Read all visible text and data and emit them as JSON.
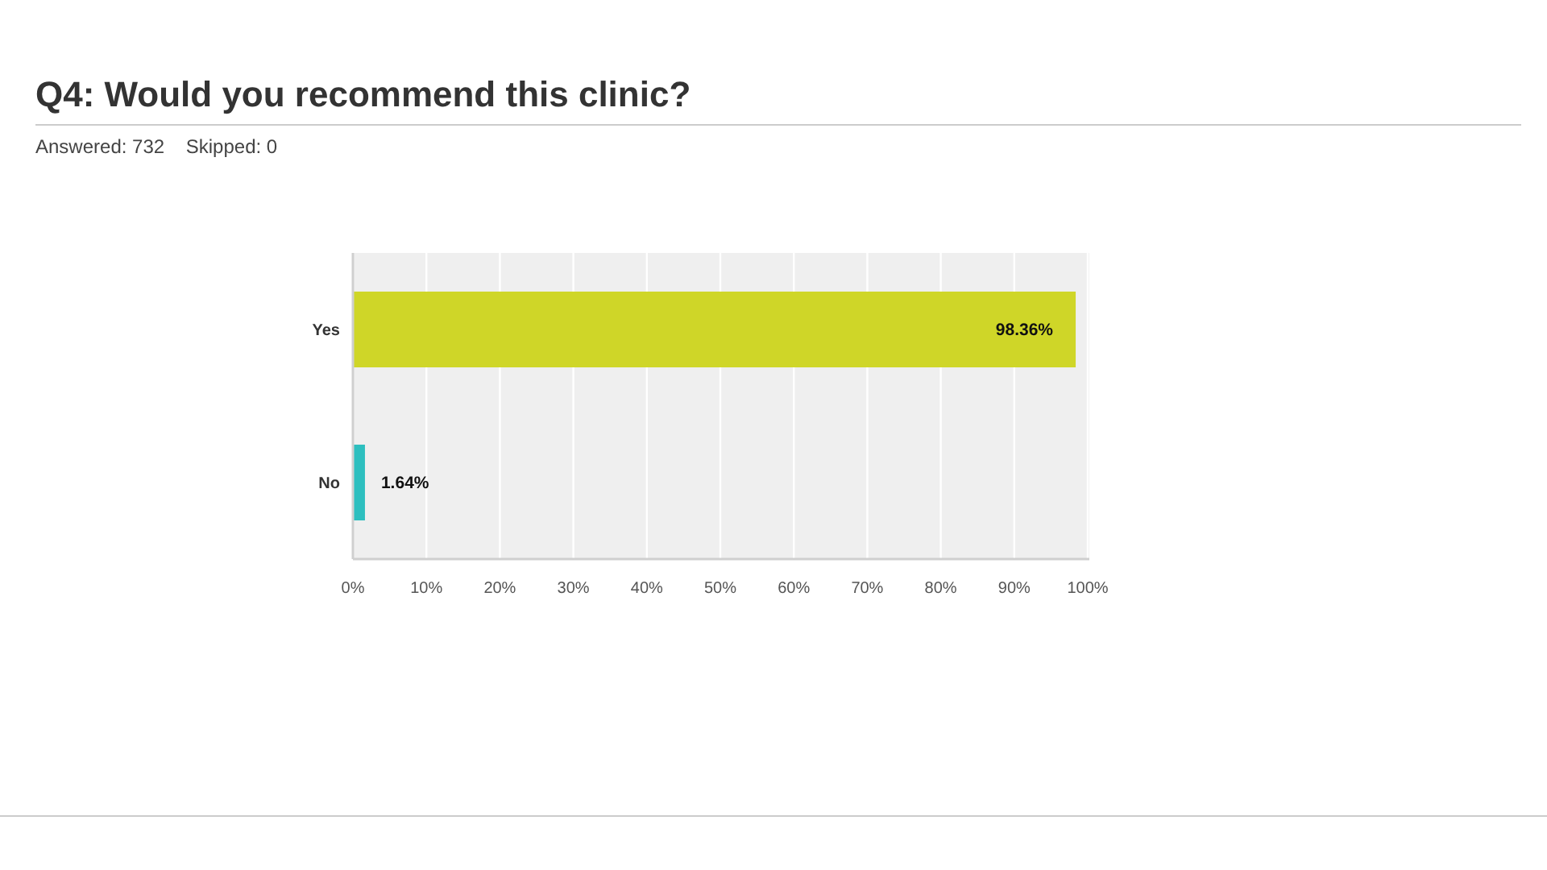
{
  "chart_data": {
    "type": "bar",
    "orientation": "horizontal",
    "title": "Q4: Would you recommend this clinic?",
    "subtitle": "Answered: 732    Skipped: 0",
    "categories": [
      "Yes",
      "No"
    ],
    "values": [
      98.36,
      1.64
    ],
    "colors": [
      "#cfd628",
      "#2dbfbf"
    ],
    "value_labels": [
      "98.36%",
      "1.64%"
    ],
    "xlim": [
      0,
      100
    ],
    "xticks": [
      {
        "value": 0,
        "label": "0%"
      },
      {
        "value": 10,
        "label": "10%"
      },
      {
        "value": 20,
        "label": "20%"
      },
      {
        "value": 30,
        "label": "30%"
      },
      {
        "value": 40,
        "label": "40%"
      },
      {
        "value": 50,
        "label": "50%"
      },
      {
        "value": 60,
        "label": "60%"
      },
      {
        "value": 70,
        "label": "70%"
      },
      {
        "value": 80,
        "label": "80%"
      },
      {
        "value": 90,
        "label": "90%"
      },
      {
        "value": 100,
        "label": "100%"
      }
    ],
    "grid": "x"
  }
}
